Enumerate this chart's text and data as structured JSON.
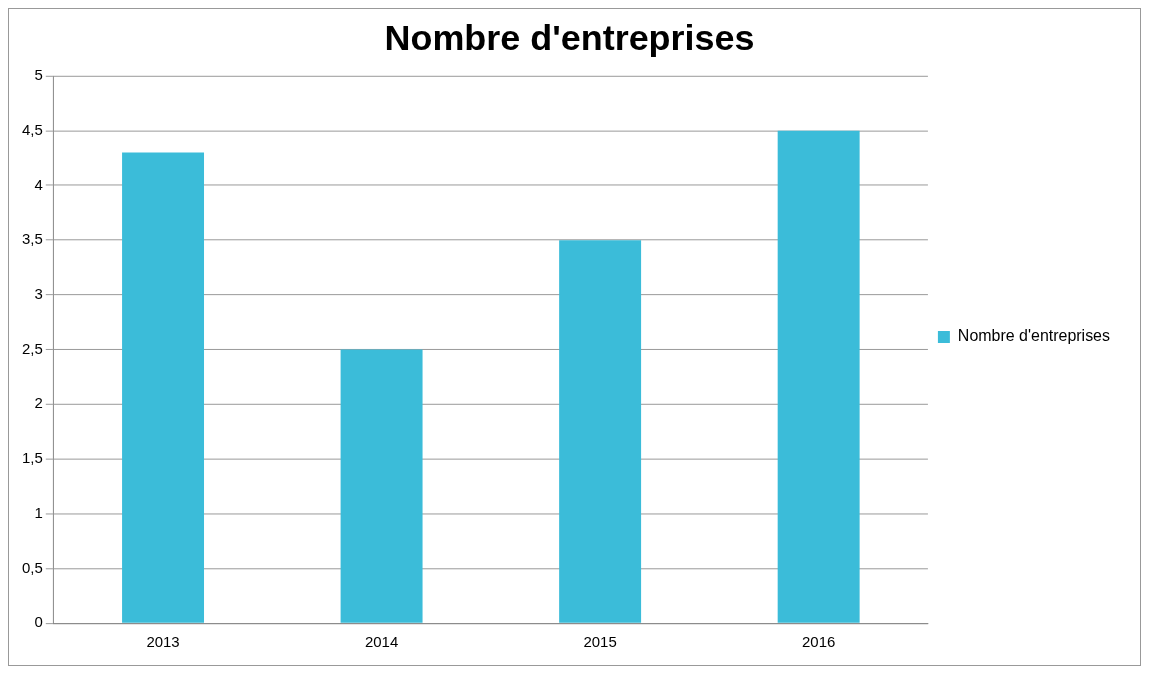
{
  "chart_data": {
    "type": "bar",
    "title": "Nombre d'entreprises",
    "categories": [
      "2013",
      "2014",
      "2015",
      "2016"
    ],
    "series": [
      {
        "name": "Nombre d'entreprises",
        "color": "#3bbcd9",
        "values": [
          4.3,
          2.5,
          3.5,
          4.5
        ]
      }
    ],
    "ylim": [
      0,
      5
    ],
    "yticks": [
      0,
      {
        "value": 0.5,
        "label": "0,5"
      },
      1,
      {
        "value": 1.5,
        "label": "1,5"
      },
      2,
      {
        "value": 2.5,
        "label": "2,5"
      },
      3,
      {
        "value": 3.5,
        "label": "3,5"
      },
      4,
      {
        "value": 4.5,
        "label": "4,5"
      },
      5
    ],
    "grid": "y",
    "legend": "right"
  }
}
